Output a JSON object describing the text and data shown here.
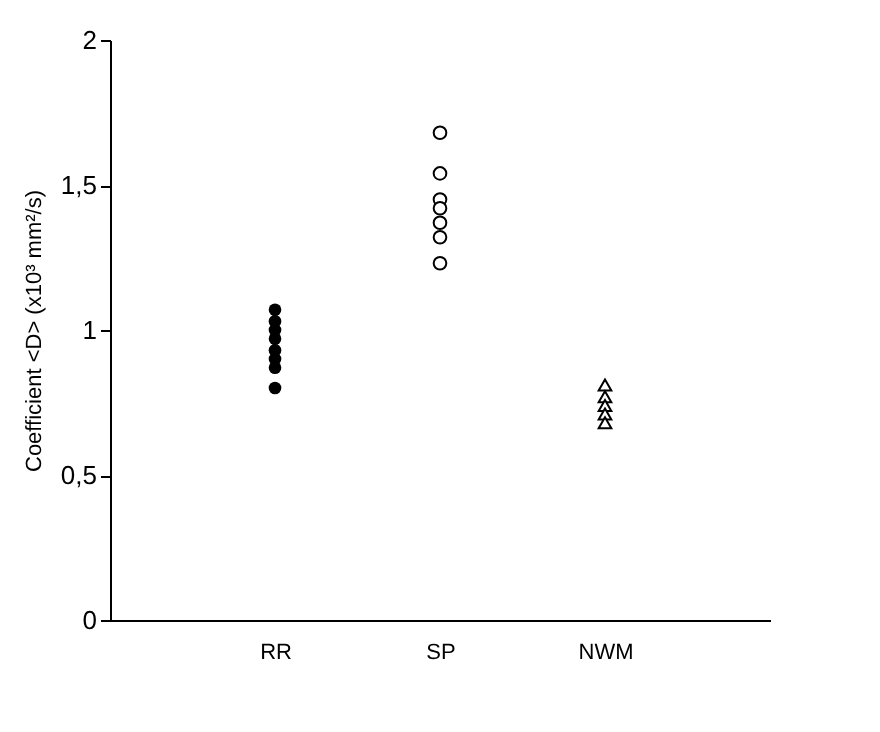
{
  "chart_data": {
    "type": "scatter",
    "ylabel": "Coefficient <D> (x10³ mm²/s)",
    "categories": [
      "RR",
      "SP",
      "NWM"
    ],
    "ylim": [
      0,
      2
    ],
    "yticks": [
      0,
      {
        "value": 0.5,
        "label": "0,5"
      },
      1,
      {
        "value": 1.5,
        "label": "1,5"
      },
      2
    ],
    "grid": false,
    "series": [
      {
        "color": "#000000",
        "marker": "circle",
        "x": [
          "RR",
          "RR",
          "RR",
          "RR",
          "RR",
          "RR",
          "RR",
          "RR"
        ],
        "values": [
          1.07,
          1.03,
          1.0,
          0.97,
          0.93,
          0.9,
          0.87,
          0.8
        ]
      },
      {
        "color": "#000000",
        "marker": "circle",
        "x": [
          "SP",
          "SP",
          "SP",
          "SP",
          "SP",
          "SP",
          "SP"
        ],
        "values": [
          1.68,
          1.54,
          1.45,
          1.42,
          1.37,
          1.32,
          1.23
        ]
      },
      {
        "color": "#000000",
        "marker": "triangle",
        "x": [
          "NWM",
          "NWM",
          "NWM",
          "NWM",
          "NWM"
        ],
        "values": [
          0.81,
          0.77,
          0.74,
          0.71,
          0.68
        ]
      }
    ]
  }
}
